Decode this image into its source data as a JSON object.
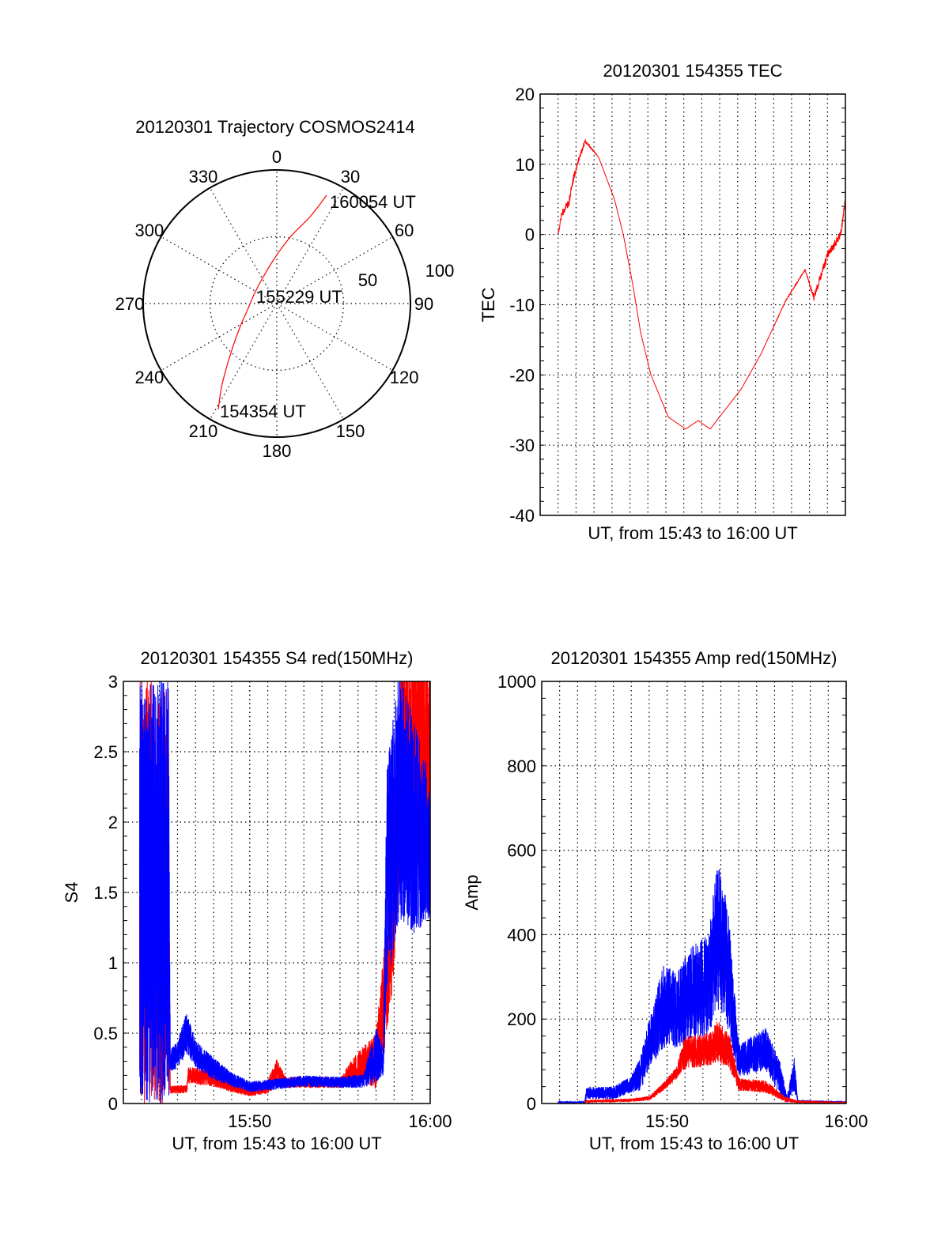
{
  "chart_data": [
    {
      "type": "polar",
      "title": "20120301 Trajectory COSMOS2414",
      "azimuth_labels": [
        "0",
        "30",
        "60",
        "90",
        "120",
        "150",
        "180",
        "210",
        "240",
        "270",
        "300",
        "330"
      ],
      "radial_labels": [
        "50",
        "100"
      ],
      "radial_range": [
        0,
        100
      ],
      "line_color": "#ff0000",
      "trajectory": [
        [
          208.9,
          90.6
        ],
        [
          213.4,
          75.2
        ],
        [
          218.6,
          59.8
        ],
        [
          224,
          48.5
        ],
        [
          236.6,
          33.3
        ],
        [
          257.8,
          22.4
        ],
        [
          294.9,
          18.3
        ],
        [
          333.4,
          22.5
        ],
        [
          357,
          33.8
        ],
        [
          11.4,
          50.7
        ],
        [
          21.2,
          70.4
        ],
        [
          24.7,
          89.2
        ]
      ],
      "annotations": [
        {
          "text": "154354 UT",
          "az": 208.9,
          "r": 90.6
        },
        {
          "text": "155229 UT",
          "az": 294.9,
          "r": 18.3
        },
        {
          "text": "160054 UT",
          "az": 24.7,
          "r": 89.2
        }
      ]
    },
    {
      "type": "line",
      "title": "20120301 154355 TEC",
      "xlabel": "UT, from 15:43 to 16:00 UT",
      "ylabel": "TEC",
      "x_units": "minutes after 15:43",
      "xlim": [
        0,
        17
      ],
      "ylim": [
        -40,
        20
      ],
      "yticks": [
        {
          "v": -40,
          "label": "-40"
        },
        {
          "v": -30,
          "label": "-30"
        },
        {
          "v": -20,
          "label": "-20"
        },
        {
          "v": -10,
          "label": "-10"
        },
        {
          "v": 0,
          "label": "0"
        },
        {
          "v": 10,
          "label": "10"
        },
        {
          "v": 20,
          "label": "20"
        }
      ],
      "xticks": [],
      "grid": true,
      "series": [
        {
          "color": "#ff0000",
          "points_t_value_noise": [
            [
              1.0,
              0,
              0.3
            ],
            [
              1.2,
              3,
              0.5
            ],
            [
              1.6,
              4.5,
              0.6
            ],
            [
              1.85,
              8,
              0.6
            ],
            [
              2.07,
              10,
              0.5
            ],
            [
              2.5,
              13.3,
              0.3
            ],
            [
              3.26,
              11,
              0
            ],
            [
              4.14,
              5,
              0
            ],
            [
              4.63,
              0,
              0
            ],
            [
              5.15,
              -7,
              0
            ],
            [
              5.6,
              -14,
              0
            ],
            [
              6.17,
              -20,
              0
            ],
            [
              7.14,
              -26,
              0
            ],
            [
              8.1,
              -27.7,
              0
            ],
            [
              8.8,
              -26.5,
              0
            ],
            [
              9.47,
              -27.7,
              0
            ],
            [
              11.2,
              -22,
              0
            ],
            [
              12.3,
              -17,
              0
            ],
            [
              13.66,
              -9.5,
              0.1
            ],
            [
              14.76,
              -5,
              0.1
            ],
            [
              15.24,
              -9,
              0.5
            ],
            [
              16.0,
              -3,
              0.6
            ],
            [
              16.74,
              0,
              0.6
            ],
            [
              17.0,
              5,
              0.5
            ]
          ]
        }
      ]
    },
    {
      "type": "line",
      "title": "20120301 154355 S4 red(150MHz)",
      "xlabel": "UT, from 15:43 to 16:00 UT",
      "ylabel": "S4",
      "x_units": "minutes after 15:43",
      "xlim": [
        0,
        17
      ],
      "ylim": [
        0,
        3
      ],
      "yticks": [
        {
          "v": 0,
          "label": "0"
        },
        {
          "v": 0.5,
          "label": "0.5"
        },
        {
          "v": 1,
          "label": "1"
        },
        {
          "v": 1.5,
          "label": "1.5"
        },
        {
          "v": 2,
          "label": "2"
        },
        {
          "v": 2.5,
          "label": "2.5"
        },
        {
          "v": 3,
          "label": "3"
        }
      ],
      "xticks": [
        {
          "v": 7,
          "label": "15:50"
        },
        {
          "v": 17,
          "label": "16:00"
        }
      ],
      "grid": true,
      "series": [
        {
          "color": "#ff0000",
          "points_t_value_noise": [
            [
              0.9,
              1.5,
              1.5
            ],
            [
              2.5,
              1.5,
              1.5
            ],
            [
              2.6,
              0.1,
              0.03
            ],
            [
              3.5,
              0.1,
              0.03
            ],
            [
              3.6,
              0.2,
              0.06
            ],
            [
              5,
              0.18,
              0.06
            ],
            [
              6,
              0.12,
              0.04
            ],
            [
              7,
              0.08,
              0.03
            ],
            [
              8,
              0.12,
              0.05
            ],
            [
              8.5,
              0.22,
              0.1
            ],
            [
              9,
              0.15,
              0.04
            ],
            [
              12,
              0.15,
              0.04
            ],
            [
              13,
              0.25,
              0.12
            ],
            [
              14,
              0.3,
              0.2
            ],
            [
              14.5,
              0.8,
              0.4
            ],
            [
              15,
              1.5,
              0.6
            ],
            [
              15.4,
              2.5,
              0.8
            ],
            [
              17,
              2.5,
              0.8
            ]
          ]
        },
        {
          "color": "#0000ff",
          "points_t_value_noise": [
            [
              0.9,
              1.5,
              1.5
            ],
            [
              2.5,
              1.5,
              1.5
            ],
            [
              2.6,
              0.3,
              0.08
            ],
            [
              3.0,
              0.35,
              0.1
            ],
            [
              3.5,
              0.5,
              0.15
            ],
            [
              4.0,
              0.35,
              0.1
            ],
            [
              5.0,
              0.25,
              0.08
            ],
            [
              6.0,
              0.17,
              0.05
            ],
            [
              7.0,
              0.12,
              0.04
            ],
            [
              8.0,
              0.13,
              0.04
            ],
            [
              10,
              0.16,
              0.04
            ],
            [
              12,
              0.15,
              0.04
            ],
            [
              13.3,
              0.16,
              0.05
            ],
            [
              14.0,
              0.35,
              0.2
            ],
            [
              14.4,
              0.3,
              0.1
            ],
            [
              14.6,
              1.6,
              0.8
            ],
            [
              15.3,
              2.2,
              0.9
            ],
            [
              16.0,
              2.0,
              0.8
            ],
            [
              17,
              1.8,
              0.5
            ]
          ]
        }
      ]
    },
    {
      "type": "line",
      "title": "20120301 154355 Amp red(150MHz)",
      "xlabel": "UT, from 15:43 to 16:00 UT",
      "ylabel": "Amp",
      "x_units": "minutes after 15:43",
      "xlim": [
        0,
        17
      ],
      "ylim": [
        0,
        1000
      ],
      "yticks": [
        {
          "v": 0,
          "label": "0"
        },
        {
          "v": 200,
          "label": "200"
        },
        {
          "v": 400,
          "label": "400"
        },
        {
          "v": 600,
          "label": "600"
        },
        {
          "v": 800,
          "label": "800"
        },
        {
          "v": 1000,
          "label": "1000"
        }
      ],
      "xticks": [
        {
          "v": 7,
          "label": "15:50"
        },
        {
          "v": 17,
          "label": "16:00"
        }
      ],
      "grid": true,
      "series": [
        {
          "color": "#0000ff",
          "points_t_value_noise": [
            [
              0.9,
              3,
              2
            ],
            [
              2.4,
              3,
              2
            ],
            [
              2.5,
              25,
              15
            ],
            [
              4,
              25,
              15
            ],
            [
              5,
              45,
              20
            ],
            [
              5.5,
              70,
              40
            ],
            [
              6,
              140,
              60
            ],
            [
              6.8,
              230,
              100
            ],
            [
              7.5,
              220,
              90
            ],
            [
              8.3,
              260,
              110
            ],
            [
              9.3,
              280,
              120
            ],
            [
              9.8,
              400,
              180
            ],
            [
              10.4,
              320,
              150
            ],
            [
              11,
              100,
              40
            ],
            [
              12.5,
              130,
              50
            ],
            [
              13.3,
              60,
              40
            ],
            [
              13.7,
              10,
              8
            ],
            [
              14.1,
              70,
              40
            ],
            [
              14.3,
              5,
              3
            ],
            [
              17,
              3,
              2
            ]
          ]
        },
        {
          "color": "#ff0000",
          "points_t_value_noise": [
            [
              2.4,
              2,
              1
            ],
            [
              2.5,
              5,
              3
            ],
            [
              5,
              8,
              4
            ],
            [
              6,
              12,
              5
            ],
            [
              6.8,
              40,
              10
            ],
            [
              7.5,
              70,
              15
            ],
            [
              8,
              120,
              40
            ],
            [
              9.5,
              130,
              40
            ],
            [
              9.8,
              150,
              50
            ],
            [
              10.5,
              120,
              40
            ],
            [
              11,
              45,
              15
            ],
            [
              12.5,
              40,
              15
            ],
            [
              13.6,
              10,
              6
            ],
            [
              14.3,
              4,
              3
            ],
            [
              17,
              2,
              1
            ]
          ]
        }
      ]
    }
  ]
}
